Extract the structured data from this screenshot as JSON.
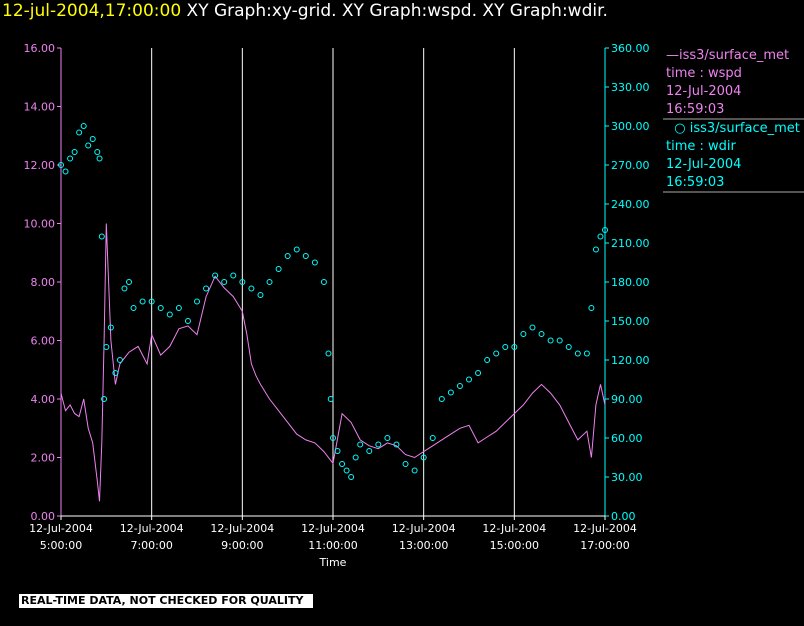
{
  "header": {
    "date": "12-jul-2004,17:00:00",
    "titles": "XY Graph:xy-grid.  XY Graph:wspd.  XY Graph:wdir."
  },
  "legend": {
    "wspd": {
      "name": "iss3/surface_met",
      "var": "time : wspd",
      "date": "12-Jul-2004",
      "time": "16:59:03"
    },
    "wdir": {
      "name": "iss3/surface_met",
      "var": "time : wdir",
      "date": "12-Jul-2004",
      "time": "16:59:03"
    }
  },
  "banner": "REAL-TIME DATA, NOT CHECKED FOR QUALITY",
  "colors": {
    "wspd": "#ee82ee",
    "wdir": "#00ffff",
    "grid": "#ffffff",
    "date": "#ffff00"
  },
  "chart_data": {
    "type": "line",
    "xlabel": "Time",
    "x_ticks": [
      {
        "date": "12-Jul-2004",
        "time": "5:00:00",
        "h": 5
      },
      {
        "date": "12-Jul-2004",
        "time": "7:00:00",
        "h": 7
      },
      {
        "date": "12-Jul-2004",
        "time": "9:00:00",
        "h": 9
      },
      {
        "date": "12-Jul-2004",
        "time": "11:00:00",
        "h": 11
      },
      {
        "date": "12-Jul-2004",
        "time": "13:00:00",
        "h": 13
      },
      {
        "date": "12-Jul-2004",
        "time": "15:00:00",
        "h": 15
      },
      {
        "date": "12-Jul-2004",
        "time": "17:00:00",
        "h": 17
      }
    ],
    "xlim": [
      5,
      17
    ],
    "grid": "vertical",
    "y_left": {
      "ticks": [
        "0.00",
        "2.00",
        "4.00",
        "6.00",
        "8.00",
        "10.00",
        "12.00",
        "14.00",
        "16.00"
      ],
      "lim": [
        0,
        16
      ]
    },
    "y_right": {
      "ticks": [
        "0.00",
        "30.00",
        "60.00",
        "90.00",
        "120.00",
        "150.00",
        "180.00",
        "210.00",
        "240.00",
        "270.00",
        "300.00",
        "330.00",
        "360.00"
      ],
      "lim": [
        0,
        360
      ]
    },
    "series": [
      {
        "name": "wspd",
        "style": "line",
        "axis": "left",
        "x": [
          5.0,
          5.1,
          5.2,
          5.3,
          5.4,
          5.5,
          5.6,
          5.7,
          5.8,
          5.85,
          5.9,
          5.95,
          6.0,
          6.1,
          6.2,
          6.3,
          6.5,
          6.7,
          6.9,
          7.0,
          7.2,
          7.4,
          7.6,
          7.8,
          8.0,
          8.2,
          8.4,
          8.6,
          8.8,
          9.0,
          9.1,
          9.2,
          9.3,
          9.4,
          9.6,
          9.8,
          10.0,
          10.2,
          10.4,
          10.6,
          10.8,
          11.0,
          11.2,
          11.4,
          11.6,
          11.8,
          12.0,
          12.2,
          12.4,
          12.6,
          12.8,
          13.0,
          13.2,
          13.4,
          13.6,
          13.8,
          14.0,
          14.2,
          14.4,
          14.6,
          14.8,
          15.0,
          15.2,
          15.4,
          15.6,
          15.8,
          16.0,
          16.2,
          16.4,
          16.6,
          16.7,
          16.8,
          16.9,
          17.0
        ],
        "y": [
          4.2,
          3.6,
          3.8,
          3.5,
          3.4,
          4.0,
          3.0,
          2.5,
          1.2,
          0.5,
          2.5,
          6.0,
          10.0,
          6.0,
          4.5,
          5.2,
          5.6,
          5.8,
          5.2,
          6.2,
          5.5,
          5.8,
          6.4,
          6.5,
          6.2,
          7.5,
          8.2,
          7.8,
          7.5,
          7.0,
          6.2,
          5.2,
          4.8,
          4.5,
          4.0,
          3.6,
          3.2,
          2.8,
          2.6,
          2.5,
          2.2,
          1.8,
          3.5,
          3.2,
          2.6,
          2.4,
          2.3,
          2.5,
          2.4,
          2.1,
          2.0,
          2.2,
          2.4,
          2.6,
          2.8,
          3.0,
          3.1,
          2.5,
          2.7,
          2.9,
          3.2,
          3.5,
          3.8,
          4.2,
          4.5,
          4.2,
          3.8,
          3.2,
          2.6,
          2.9,
          2.0,
          3.8,
          4.5,
          3.8
        ]
      },
      {
        "name": "wdir",
        "style": "points",
        "axis": "right",
        "x": [
          5.0,
          5.1,
          5.2,
          5.3,
          5.4,
          5.5,
          5.6,
          5.7,
          5.8,
          5.85,
          5.9,
          5.95,
          6.0,
          6.1,
          6.2,
          6.3,
          6.4,
          6.5,
          6.6,
          6.8,
          7.0,
          7.2,
          7.4,
          7.6,
          7.8,
          8.0,
          8.2,
          8.4,
          8.6,
          8.8,
          9.0,
          9.2,
          9.4,
          9.6,
          9.8,
          10.0,
          10.2,
          10.4,
          10.6,
          10.8,
          10.9,
          10.95,
          11.0,
          11.1,
          11.2,
          11.3,
          11.4,
          11.5,
          11.6,
          11.8,
          12.0,
          12.2,
          12.4,
          12.6,
          12.8,
          13.0,
          13.2,
          13.4,
          13.6,
          13.8,
          14.0,
          14.2,
          14.4,
          14.6,
          14.8,
          15.0,
          15.2,
          15.4,
          15.6,
          15.8,
          16.0,
          16.2,
          16.4,
          16.6,
          16.7,
          16.8,
          16.9,
          17.0
        ],
        "y": [
          270,
          265,
          275,
          280,
          295,
          300,
          285,
          290,
          280,
          275,
          215,
          90,
          130,
          145,
          110,
          120,
          175,
          180,
          160,
          165,
          165,
          160,
          155,
          160,
          150,
          165,
          175,
          185,
          180,
          185,
          180,
          175,
          170,
          180,
          190,
          200,
          205,
          200,
          195,
          180,
          125,
          90,
          60,
          50,
          40,
          35,
          30,
          45,
          55,
          50,
          55,
          60,
          55,
          40,
          35,
          45,
          60,
          90,
          95,
          100,
          105,
          110,
          120,
          125,
          130,
          130,
          140,
          145,
          140,
          135,
          135,
          130,
          125,
          125,
          160,
          205,
          215,
          220
        ]
      }
    ]
  }
}
